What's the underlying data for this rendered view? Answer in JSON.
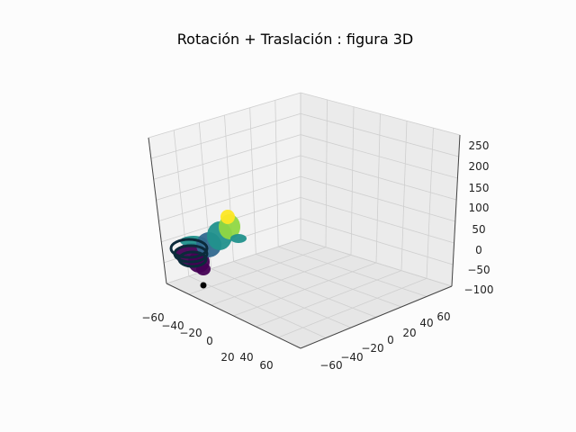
{
  "chart_data": {
    "type": "scatter3d",
    "title": "Rotación + Traslación : figura 3D",
    "xlabel": "",
    "ylabel": "",
    "zlabel": "",
    "xlim": [
      -70,
      70
    ],
    "ylim": [
      -70,
      70
    ],
    "zlim": [
      -100,
      260
    ],
    "grid": true,
    "x_ticks": [
      "−60",
      "−40",
      "−20",
      "0",
      "20",
      "40",
      "60"
    ],
    "y_ticks": [
      "−60",
      "−40",
      "−20",
      "0",
      "20",
      "40",
      "60"
    ],
    "z_ticks": [
      "−100",
      "−50",
      "0",
      "50",
      "100",
      "150",
      "200",
      "250"
    ],
    "colormap": [
      "#440154",
      "#31688e",
      "#21918c",
      "#35b779",
      "#90d743",
      "#fde725"
    ],
    "figure": {
      "description_points": [
        {
          "x": -55,
          "y": -20,
          "z": -40
        },
        {
          "x": -45,
          "y": -10,
          "z": 20
        },
        {
          "x": -30,
          "y": 0,
          "z": 60
        },
        {
          "x": -20,
          "y": 5,
          "z": 90
        },
        {
          "x": -10,
          "y": 10,
          "z": 110
        }
      ]
    },
    "origin_marker": {
      "x": -55,
      "y": -40,
      "z": -100,
      "color": "#000000"
    }
  }
}
